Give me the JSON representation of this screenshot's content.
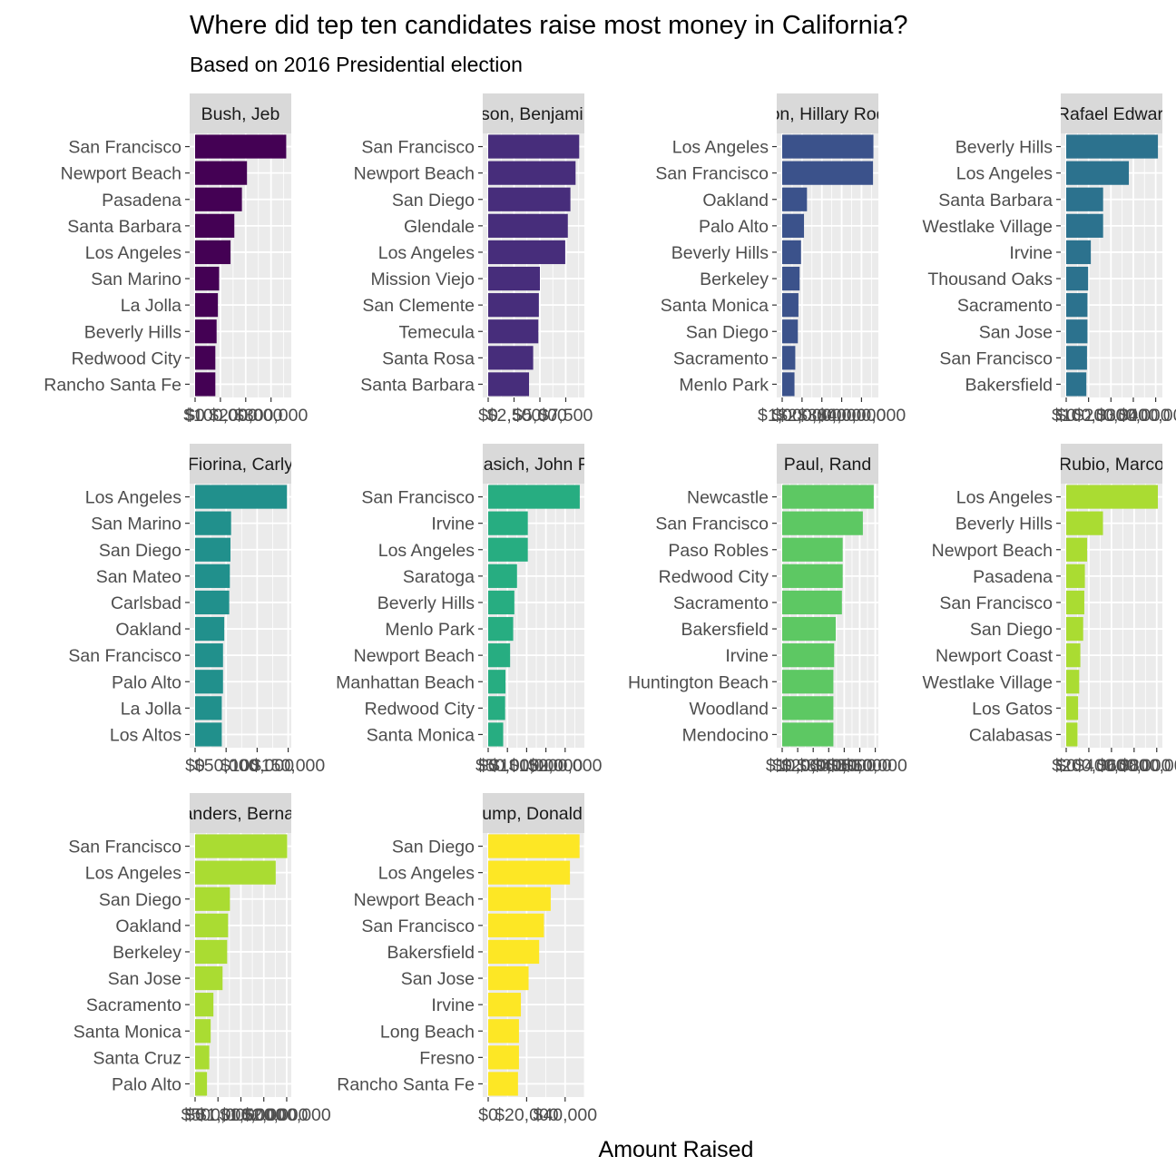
{
  "chart_data": {
    "type": "bar",
    "orientation": "horizontal",
    "title": "Where did tep ten candidates raise most money in California?",
    "subtitle": "Based on 2016 Presidential election",
    "xlabel": "Amount Raised",
    "ylabel": "",
    "layout": "facet grid 4 columns",
    "grid": true,
    "panels": [
      {
        "strip": "Bush, Jeb",
        "color": "#440154",
        "categories": [
          "San Francisco",
          "Newport Beach",
          "Pasadena",
          "Santa Barbara",
          "Los Angeles",
          "San Marino",
          "La Jolla",
          "Beverly Hills",
          "Redwood City",
          "Rancho Santa Fe"
        ],
        "values": [
          360000,
          205000,
          185000,
          155000,
          140000,
          95000,
          90000,
          85000,
          80000,
          80000
        ],
        "xlim": [
          0,
          380000
        ],
        "ticks": [
          0,
          100000,
          200000,
          300000
        ],
        "tick_labels": [
          "$0",
          "$100,000",
          "$200,000",
          "$300,000"
        ]
      },
      {
        "strip": "Carson, Benjamin S.",
        "color": "#472D7B",
        "categories": [
          "San Francisco",
          "Newport Beach",
          "San Diego",
          "Glendale",
          "Los Angeles",
          "Mission Viejo",
          "San Clemente",
          "Temecula",
          "Santa Rosa",
          "Santa Barbara"
        ],
        "values": [
          8800,
          8450,
          7950,
          7700,
          7450,
          5000,
          4900,
          4850,
          4350,
          3950
        ],
        "xlim": [
          0,
          9300
        ],
        "ticks": [
          0,
          2500,
          5000,
          7500
        ],
        "tick_labels": [
          "$0",
          "$2,500",
          "$5,000",
          "$7,500"
        ]
      },
      {
        "strip": "Clinton, Hillary Rodham",
        "color": "#3B528B",
        "categories": [
          "Los Angeles",
          "San Francisco",
          "Oakland",
          "Palo Alto",
          "Beverly Hills",
          "Berkeley",
          "Santa Monica",
          "San Diego",
          "Sacramento",
          "Menlo Park"
        ],
        "values": [
          4600000,
          4580000,
          1250000,
          1100000,
          950000,
          880000,
          820000,
          790000,
          660000,
          620000
        ],
        "xlim": [
          0,
          4850000
        ],
        "ticks": [
          0,
          1000000,
          2000000,
          3000000,
          4000000
        ],
        "tick_labels": [
          "$0",
          "$1,000,000",
          "$2,000,000",
          "$3,000,000",
          "$4,000,000"
        ]
      },
      {
        "strip": "Cruz, Rafael Edward 'Ted'",
        "color": "#2C728E",
        "categories": [
          "Beverly Hills",
          "Los Angeles",
          "Santa Barbara",
          "Westlake Village",
          "Irvine",
          "Thousand Oaks",
          "Sacramento",
          "San Jose",
          "San Francisco",
          "Bakersfield"
        ],
        "values": [
          410000,
          280000,
          165000,
          165000,
          110000,
          98000,
          95000,
          95000,
          93000,
          90000
        ],
        "xlim": [
          0,
          430000
        ],
        "ticks": [
          0,
          100000,
          200000,
          300000,
          400000
        ],
        "tick_labels": [
          "$0",
          "$100,000",
          "$200,000",
          "$300,000",
          "$400,000"
        ]
      },
      {
        "strip": "Fiorina, Carly",
        "color": "#21908C",
        "categories": [
          "Los Angeles",
          "San Marino",
          "San Diego",
          "San Mateo",
          "Carlsbad",
          "Oakland",
          "San Francisco",
          "Palo Alto",
          "La Jolla",
          "Los Altos"
        ],
        "values": [
          148000,
          58000,
          57000,
          56000,
          55000,
          47000,
          45000,
          45000,
          43000,
          43000
        ],
        "xlim": [
          0,
          155000
        ],
        "ticks": [
          0,
          50000,
          100000,
          150000
        ],
        "tick_labels": [
          "$0",
          "$50,000",
          "$100,000",
          "$150,000"
        ]
      },
      {
        "strip": "Kasich, John R.",
        "color": "#27AD81",
        "categories": [
          "San Francisco",
          "Irvine",
          "Los Angeles",
          "Saratoga",
          "Beverly Hills",
          "Menlo Park",
          "Newport Beach",
          "Manhattan Beach",
          "Redwood City",
          "Santa Monica"
        ],
        "values": [
          238000,
          103000,
          103000,
          75000,
          68000,
          65000,
          57000,
          45000,
          44000,
          39000
        ],
        "xlim": [
          0,
          250000
        ],
        "ticks": [
          0,
          50000,
          100000,
          150000,
          200000
        ],
        "tick_labels": [
          "$0",
          "$50,000",
          "$100,000",
          "$150,000",
          "$200,000"
        ]
      },
      {
        "strip": "Paul, Rand",
        "color": "#5DC863",
        "categories": [
          "Newcastle",
          "San Francisco",
          "Paso Robles",
          "Redwood City",
          "Sacramento",
          "Bakersfield",
          "Irvine",
          "Huntington Beach",
          "Woodland",
          "Mendocino"
        ],
        "values": [
          59000,
          52000,
          39000,
          39000,
          38500,
          34500,
          33500,
          33000,
          33000,
          33000
        ],
        "xlim": [
          0,
          62000
        ],
        "ticks": [
          0,
          10000,
          20000,
          30000,
          40000,
          50000,
          60000
        ],
        "tick_labels": [
          "$0",
          "$10,000",
          "$20,000",
          "$30,000",
          "$40,000",
          "$50,000",
          "$60,000"
        ]
      },
      {
        "strip": "Rubio, Marco",
        "color": "#AADC32",
        "categories": [
          "Los Angeles",
          "Beverly Hills",
          "Newport Beach",
          "Pasadena",
          "San Francisco",
          "San Diego",
          "Newport Coast",
          "Westlake Village",
          "Los Gatos",
          "Calabasas"
        ],
        "values": [
          810000,
          325000,
          185000,
          165000,
          160000,
          150000,
          125000,
          115000,
          105000,
          100000
        ],
        "xlim": [
          0,
          850000
        ],
        "ticks": [
          0,
          200000,
          400000,
          600000,
          800000
        ],
        "tick_labels": [
          "$0",
          "$200,000",
          "$400,000",
          "$600,000",
          "$800,000"
        ]
      },
      {
        "strip": "Sanders, Bernard",
        "color": "#AADC32",
        "categories": [
          "San Francisco",
          "Los Angeles",
          "San Diego",
          "Oakland",
          "Berkeley",
          "San Jose",
          "Sacramento",
          "Santa Monica",
          "Santa Cruz",
          "Palo Alto"
        ],
        "values": [
          2010000,
          1760000,
          760000,
          720000,
          700000,
          600000,
          400000,
          340000,
          310000,
          260000
        ],
        "xlim": [
          0,
          2100000
        ],
        "ticks": [
          0,
          500000,
          1000000,
          1500000,
          2000000
        ],
        "tick_labels": [
          "$0",
          "$500,000",
          "$1,000,000",
          "$1,500,000",
          "$2,000,000"
        ]
      },
      {
        "strip": "Trump, Donald J.",
        "color": "#FDE725",
        "categories": [
          "San Diego",
          "Los Angeles",
          "Newport Beach",
          "San Francisco",
          "Bakersfield",
          "San Jose",
          "Irvine",
          "Long Beach",
          "Fresno",
          "Rancho Santa Fe"
        ],
        "values": [
          47500,
          42500,
          32500,
          29000,
          26500,
          21000,
          17000,
          16000,
          16000,
          15500
        ],
        "xlim": [
          0,
          50000
        ],
        "ticks": [
          0,
          20000,
          40000
        ],
        "tick_labels": [
          "$0",
          "$20,000",
          "$40,000"
        ]
      }
    ]
  }
}
